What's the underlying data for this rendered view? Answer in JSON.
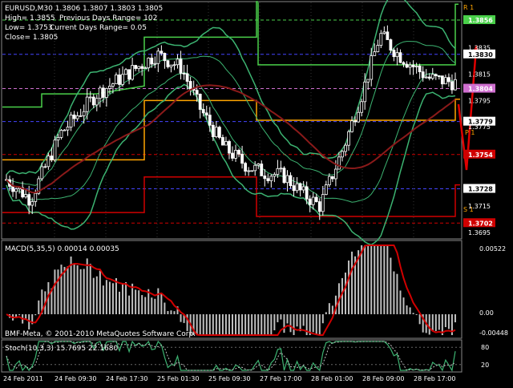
{
  "header": {
    "title": "EURUSD,M30  1.3806 1.3807 1.3803 1.3805",
    "high": "High= 1.3855",
    "prev_range": "Previous Days Range= 102",
    "low": "Low= 1.3753",
    "curr_range": "Current Days Range= 0.05",
    "close": "Close= 1.3805"
  },
  "colors": {
    "background": "#000000",
    "grid": "#555555",
    "candle": "#ffffff",
    "bollinger": "#3cb371",
    "ma": "#8b1a1a",
    "range_green": "#4ad04a",
    "range_orange": "#ffa500",
    "range_red": "#d00000",
    "arrow": "#e00000",
    "price_label_bg": "#ffffff",
    "current_label_bg": "#d070d0",
    "macd_hist": "#c0c0c0",
    "macd_signal": "#d00000",
    "stoch_main": "#3cb371",
    "stoch_signal": "#c0c0c0"
  },
  "axis": {
    "price_labels": [
      "1.3835",
      "1.3815",
      "1.3795",
      "1.3775",
      "1.3728",
      "1.3715",
      "1.3695"
    ],
    "tagged_labels": [
      "1.3856",
      "1.3830",
      "1.3804",
      "1.3779",
      "1.3754",
      "1.3728",
      "1.3702"
    ],
    "macd_labels": [
      "0.00522",
      "0.00",
      "-0.00448"
    ],
    "stoch_labels": [
      "80",
      "20"
    ],
    "time_labels": [
      "24 Feb 2011",
      "24 Feb 09:30",
      "24 Feb 17:30",
      "25 Feb 01:30",
      "25 Feb 09:30",
      "27 Feb 17:00",
      "28 Feb 01:00",
      "28 Feb 09:00",
      "28 Feb 17:00"
    ]
  },
  "levels": {
    "r1": "R 1",
    "p": "P 1",
    "s1": "S 1"
  },
  "macd": {
    "title": "MACD(5,35,5) 0.00014 0.00035"
  },
  "bmf": {
    "text": "BMF-Meta, © 2001-2010 MetaQuotes Software Corp."
  },
  "stoch": {
    "title": "Stoch(10,3,3) 15.7695 22.1680"
  },
  "chart_data": {
    "type": "line",
    "title": "EURUSD,M30",
    "ylim": [
      1.369,
      1.387
    ]
  }
}
